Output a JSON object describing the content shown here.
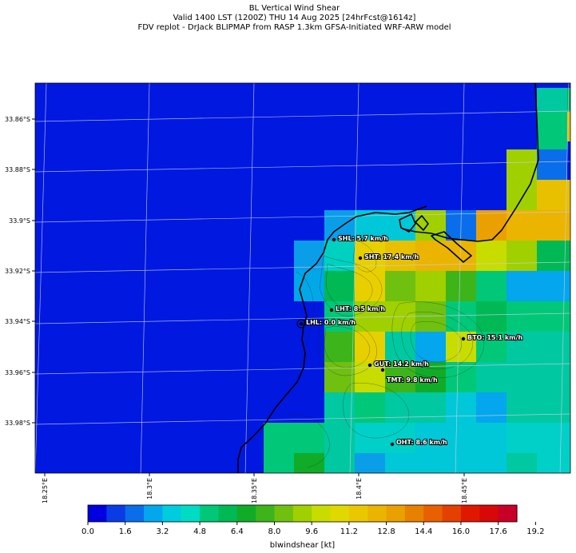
{
  "header": {
    "line1": "BL Vertical Wind Shear",
    "line2": "Valid 1400 LST (1200Z) THU 14 Aug 2025 [24hrFcst@1614z]",
    "line3": "FDV replot - DrJack BLIPMAP from RASP 1.3km GFSA-Initiated WRF-ARW model"
  },
  "map": {
    "lat_ticks": [
      "33.86°S",
      "33.88°S",
      "33.9°S",
      "33.92°S",
      "33.94°S",
      "33.96°S",
      "33.98°S"
    ],
    "lon_ticks": [
      "18.25°E",
      "18.3°E",
      "18.35°E",
      "18.4°E",
      "18.45°E"
    ],
    "background_color": "#0018e0",
    "stations": [
      {
        "code": "SHL",
        "label": "SHL: 5.7 km/h",
        "value_kmh": 5.7
      },
      {
        "code": "SHT",
        "label": "SHT: 17.4 km/h",
        "value_kmh": 17.4
      },
      {
        "code": "LHT",
        "label": "LHT: 8.5 km/h",
        "value_kmh": 8.5
      },
      {
        "code": "LHL",
        "label": "LHL: 0.0 km/h",
        "value_kmh": 0.0
      },
      {
        "code": "BTO",
        "label": "BTO: 15.1 km/h",
        "value_kmh": 15.1
      },
      {
        "code": "GUT",
        "label": "GUT: 14.2 km/h",
        "value_kmh": 14.2
      },
      {
        "code": "TMT",
        "label": "TMT: 9.8 km/h",
        "value_kmh": 9.8
      },
      {
        "code": "OHT",
        "label": "OHT: 8.6 km/h",
        "value_kmh": 8.6
      }
    ]
  },
  "colorbar": {
    "label": "blwindshear [kt]",
    "tick_labels": [
      "0.0",
      "1.6",
      "3.2",
      "4.8",
      "6.4",
      "8.0",
      "9.6",
      "11.2",
      "12.8",
      "14.4",
      "16.0",
      "17.6",
      "19.2"
    ],
    "colors": [
      "#0000e0",
      "#0a3ce6",
      "#0a6eea",
      "#04a6ee",
      "#00cce0",
      "#00dcc4",
      "#00c878",
      "#00b854",
      "#10ac28",
      "#3cb41a",
      "#70c010",
      "#a0d000",
      "#c8dc00",
      "#e0d800",
      "#eac800",
      "#eab400",
      "#eaa000",
      "#e88000",
      "#e86000",
      "#e44000",
      "#e01800",
      "#d80808",
      "#c80028"
    ]
  }
}
